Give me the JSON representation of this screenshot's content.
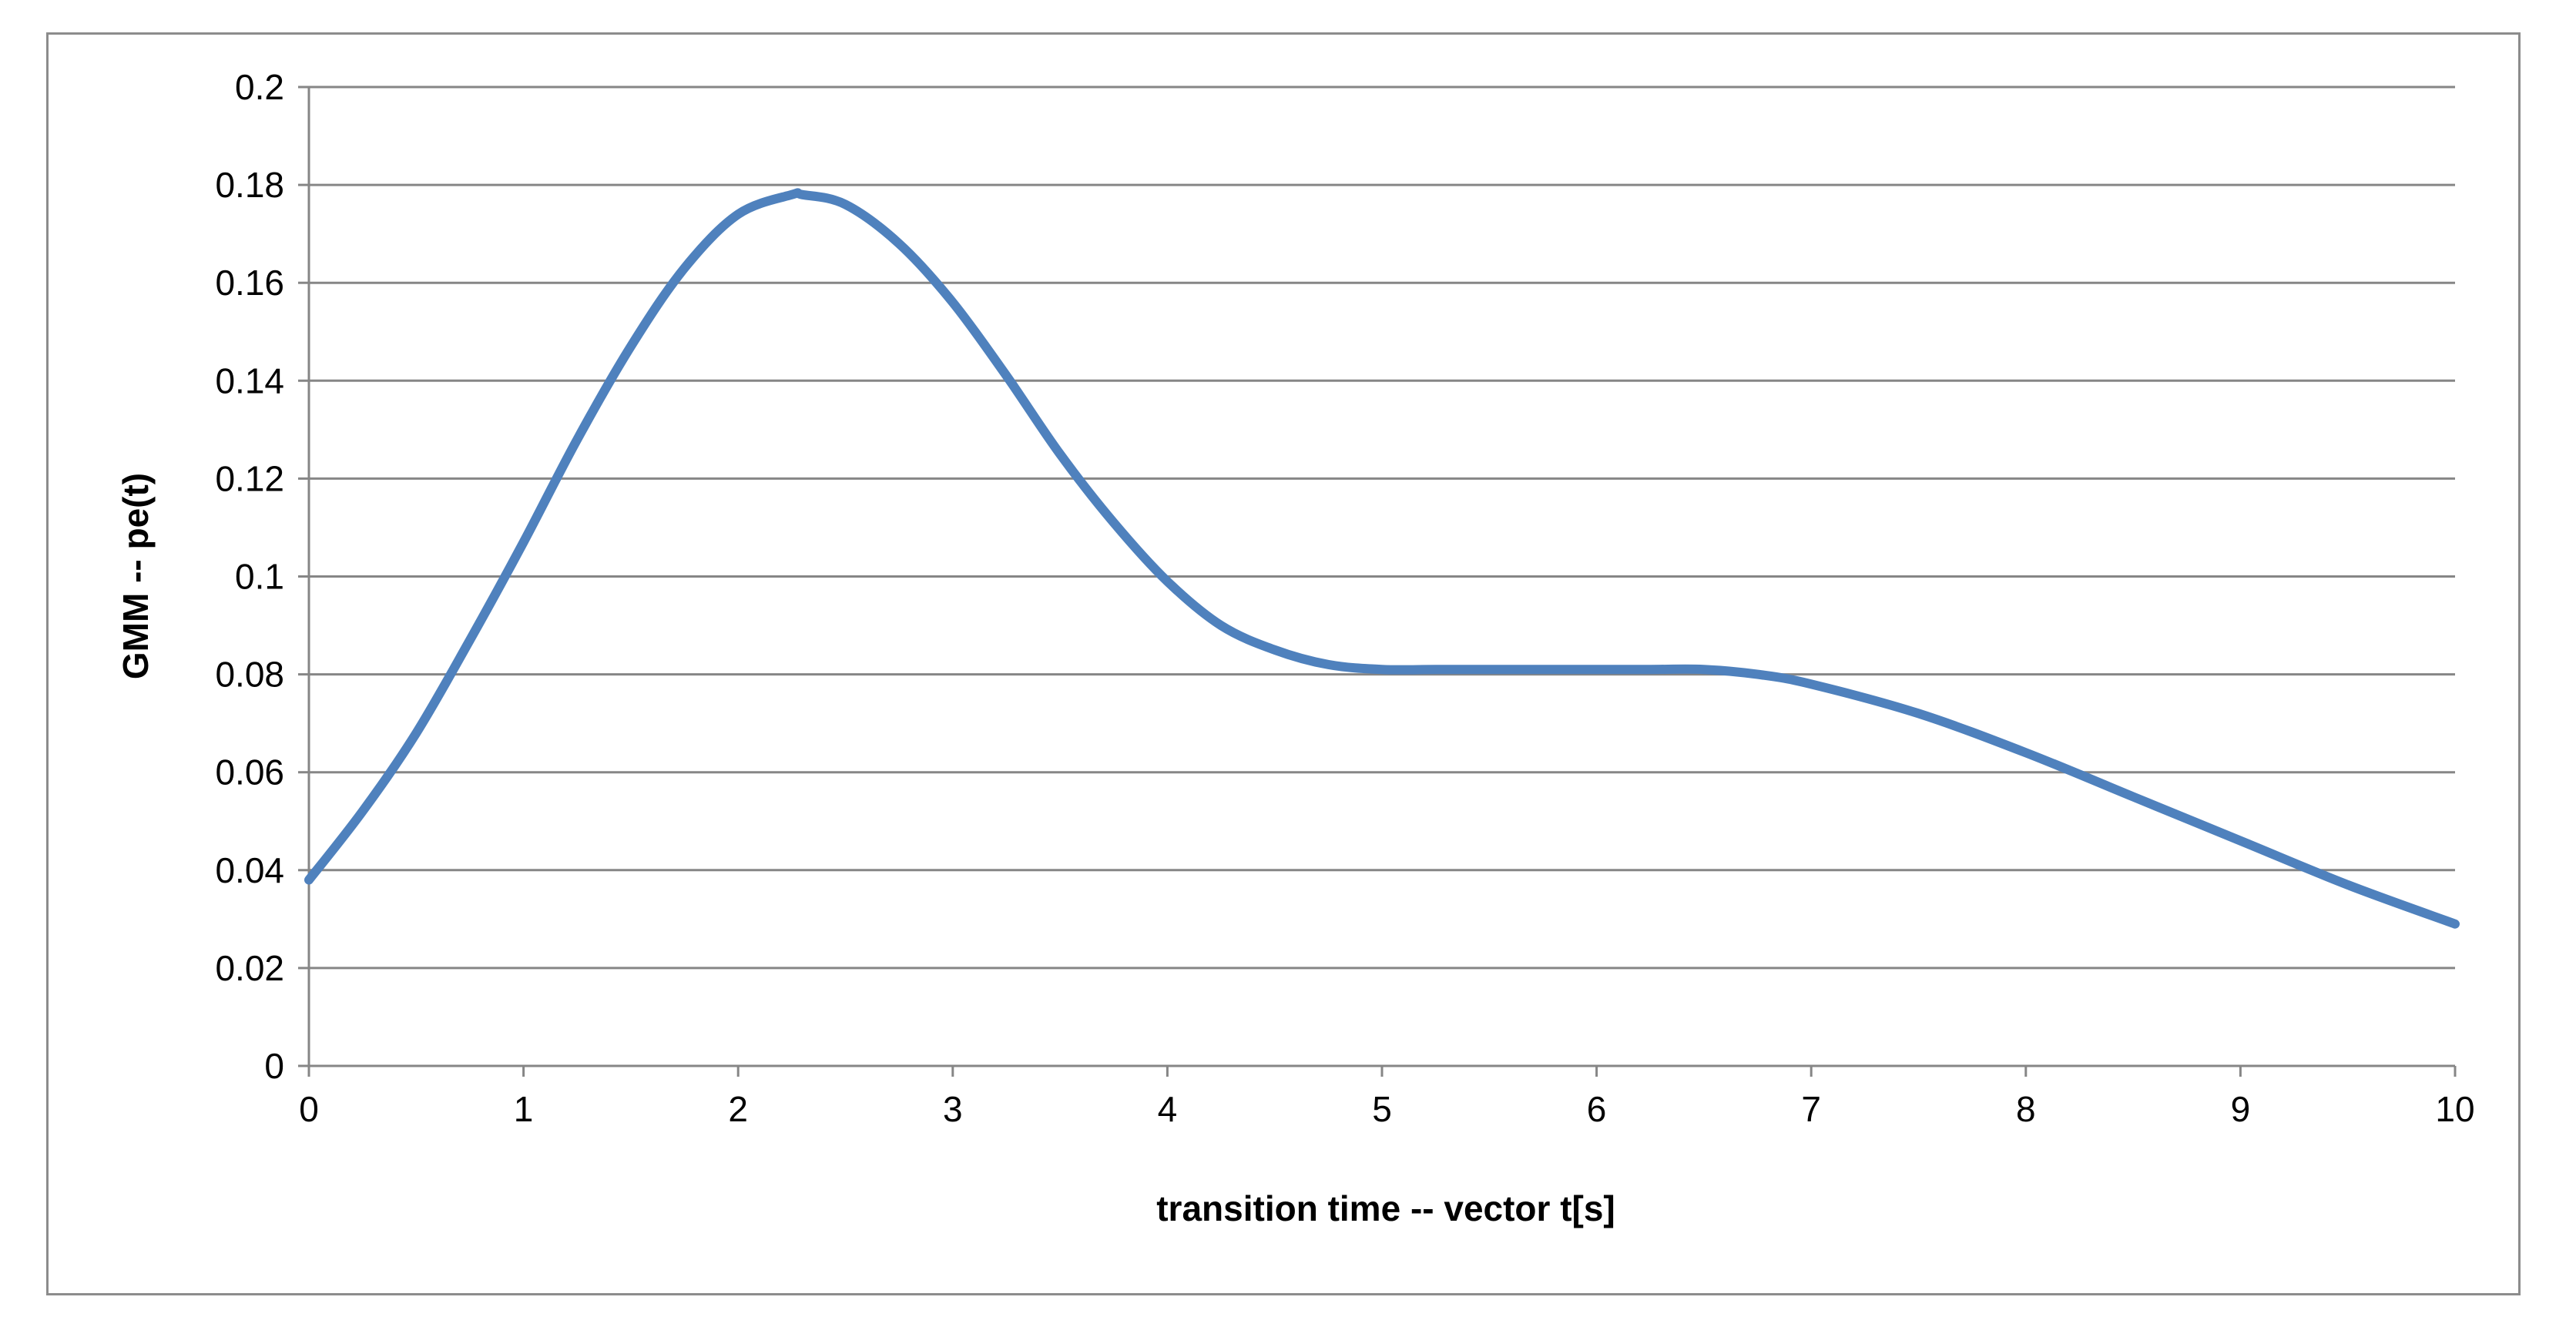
{
  "chart_data": {
    "type": "line",
    "title": "",
    "xlabel": "transition time -- vector t[s]",
    "ylabel": "GMM -- pe(t)",
    "xlim": [
      0,
      10
    ],
    "ylim": [
      0,
      0.2
    ],
    "x_ticks": [
      "0",
      "1",
      "2",
      "3",
      "4",
      "5",
      "6",
      "7",
      "8",
      "9",
      "10"
    ],
    "y_ticks": [
      "0",
      "0.02",
      "0.04",
      "0.06",
      "0.08",
      "0.1",
      "0.12",
      "0.14",
      "0.16",
      "0.18",
      "0.2"
    ],
    "grid": "horizontal",
    "legend": "none",
    "series": [
      {
        "color": "#4f81bd",
        "x": [
          0,
          0.25,
          0.5,
          0.75,
          1.0,
          1.25,
          1.5,
          1.75,
          2.0,
          2.25,
          2.3,
          2.5,
          2.75,
          3.0,
          3.25,
          3.5,
          3.75,
          4.0,
          4.25,
          4.5,
          4.75,
          5.0,
          5.25,
          5.5,
          5.75,
          6.0,
          6.25,
          6.5,
          6.75,
          7.0,
          7.5,
          8.0,
          8.5,
          9.0,
          9.5,
          10.0
        ],
        "y": [
          0.038,
          0.052,
          0.068,
          0.087,
          0.107,
          0.128,
          0.147,
          0.163,
          0.174,
          0.178,
          0.178,
          0.176,
          0.168,
          0.156,
          0.141,
          0.125,
          0.111,
          0.099,
          0.09,
          0.085,
          0.082,
          0.081,
          0.081,
          0.081,
          0.081,
          0.081,
          0.081,
          0.081,
          0.08,
          0.078,
          0.072,
          0.064,
          0.055,
          0.046,
          0.037,
          0.029
        ]
      }
    ]
  }
}
